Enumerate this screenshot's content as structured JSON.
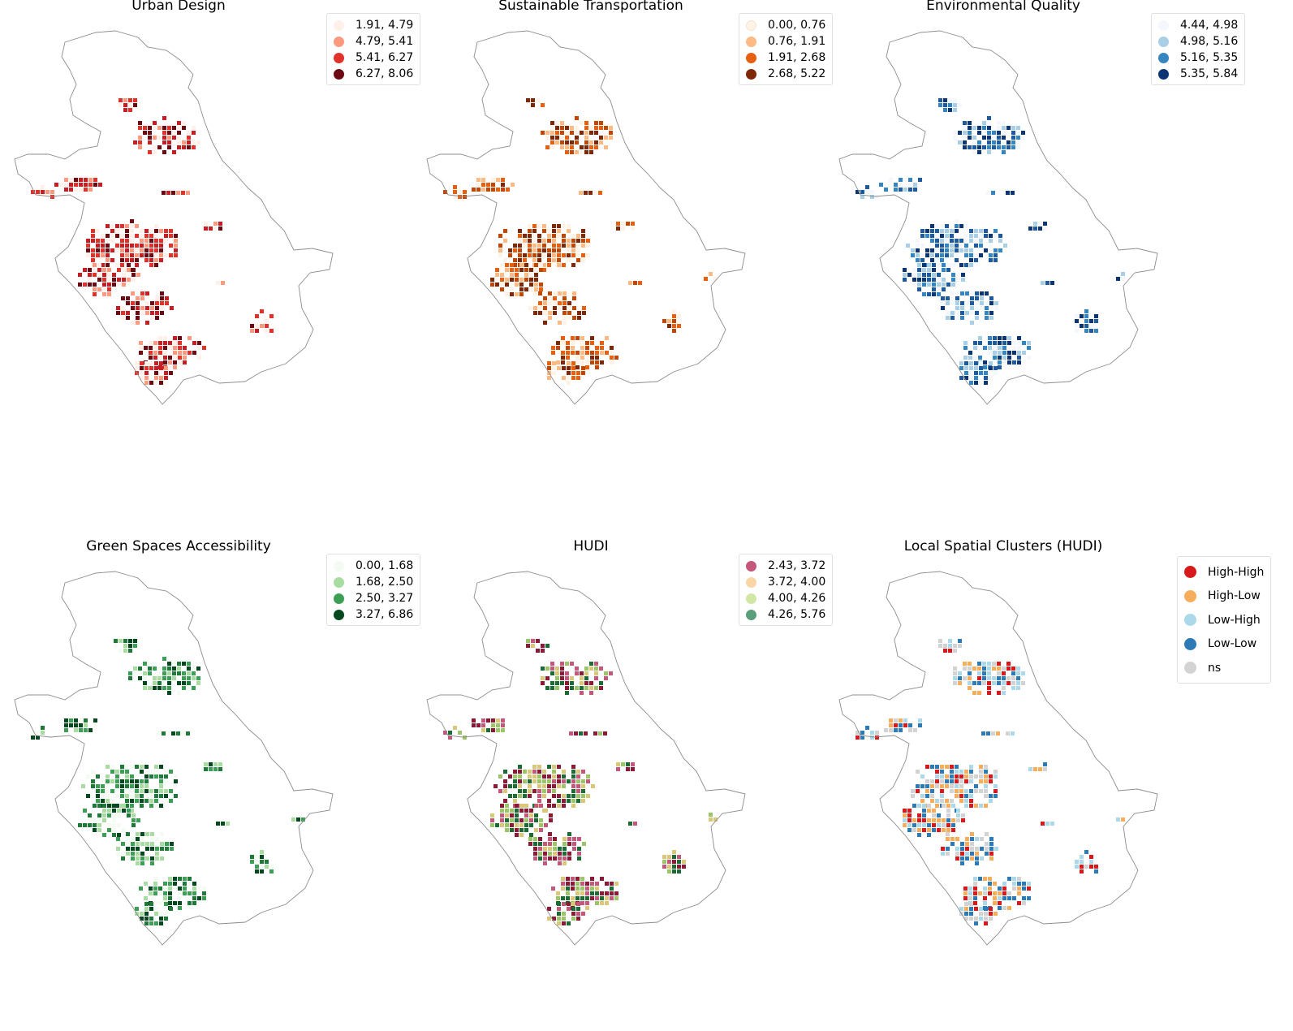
{
  "panels": [
    {
      "title": "Urban Design",
      "legend": [
        {
          "label": "1.91, 4.79",
          "color": "#fff0e9"
        },
        {
          "label": "4.79, 5.41",
          "color": "#fb9a7f"
        },
        {
          "label": "5.41, 6.27",
          "color": "#e0312b"
        },
        {
          "label": "6.27, 8.06",
          "color": "#6b0a13"
        }
      ]
    },
    {
      "title": "Sustainable Transportation",
      "legend": [
        {
          "label": "0.00, 0.76",
          "color": "#fff2e6"
        },
        {
          "label": "0.76, 1.91",
          "color": "#fdba84"
        },
        {
          "label": "1.91, 2.68",
          "color": "#e75f10"
        },
        {
          "label": "2.68, 5.22",
          "color": "#7f2808"
        }
      ]
    },
    {
      "title": "Environmental Quality",
      "legend": [
        {
          "label": "4.44, 4.98",
          "color": "#f4f8fd"
        },
        {
          "label": "4.98, 5.16",
          "color": "#a8cfe5"
        },
        {
          "label": "5.16, 5.35",
          "color": "#3585c0"
        },
        {
          "label": "5.35, 5.84",
          "color": "#0b3673"
        }
      ]
    },
    {
      "title": "Green Spaces Accessibility",
      "legend": [
        {
          "label": "0.00, 1.68",
          "color": "#f4fbf2"
        },
        {
          "label": "1.68, 2.50",
          "color": "#a8dca1"
        },
        {
          "label": "2.50, 3.27",
          "color": "#3d9f56"
        },
        {
          "label": "3.27, 6.86",
          "color": "#03481f"
        }
      ]
    },
    {
      "title": "HUDI",
      "legend": [
        {
          "label": "2.43, 3.72",
          "color": "#c4587a"
        },
        {
          "label": "3.72, 4.00",
          "color": "#f8d6a6"
        },
        {
          "label": "4.00, 4.26",
          "color": "#d2e7a6"
        },
        {
          "label": "4.26, 5.76",
          "color": "#5a9f7c"
        }
      ]
    },
    {
      "title": "Local Spatial Clusters (HUDI)",
      "legend": [
        {
          "label": "High-High",
          "color": "#d7191c"
        },
        {
          "label": "High-Low",
          "color": "#f6ad5c"
        },
        {
          "label": "Low-High",
          "color": "#abd9e9"
        },
        {
          "label": "Low-Low",
          "color": "#2c7bb6"
        },
        {
          "label": "ns",
          "color": "#d3d3d3"
        }
      ]
    }
  ],
  "map_cell_colors": {
    "urban_design": [
      "#6b0a13",
      "#e0312b",
      "#fb9a7f",
      "#fff0e9",
      "#c51f25"
    ],
    "sustainable_transportation": [
      "#7f2808",
      "#e75f10",
      "#fdba84",
      "#fff2e6",
      "#c14707"
    ],
    "environmental_quality": [
      "#0b3673",
      "#3585c0",
      "#a8cfe5",
      "#f4f8fd",
      "#1d5a9e"
    ],
    "green_spaces": [
      "#03481f",
      "#3d9f56",
      "#a8dca1",
      "#f4fbf2",
      "#1f7a3a"
    ],
    "hudi": [
      "#8b1a36",
      "#d9c77a",
      "#9cc56a",
      "#1d6b34",
      "#c4587a"
    ],
    "clusters": [
      "#d7191c",
      "#2c7bb6",
      "#d3d3d3",
      "#f6ad5c",
      "#abd9e9"
    ]
  }
}
